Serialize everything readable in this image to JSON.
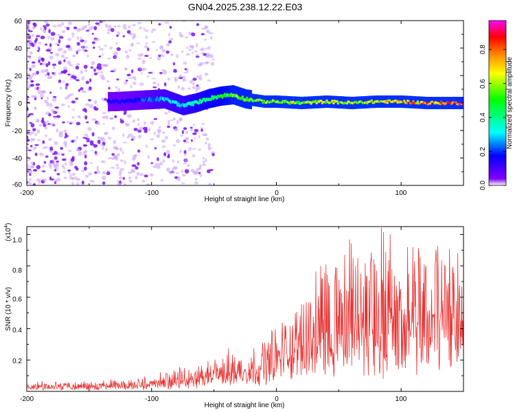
{
  "title": "GN04.2025.238.12.22.E03",
  "chart_data": [
    {
      "type": "heatmap",
      "xlabel": "Height of straight line (km)",
      "ylabel": "Frequency (Hz)",
      "xlim": [
        -200,
        150
      ],
      "ylim": [
        -60,
        60
      ],
      "xticks": [
        "-200",
        "-100",
        "0",
        "100"
      ],
      "yticks": [
        "60",
        "40",
        "20",
        "0",
        "-20",
        "-40",
        "-60"
      ],
      "colorbar": {
        "label": "Normalized spectral amplitude",
        "range": [
          0,
          0.97
        ],
        "ticks": [
          "0.0",
          "0.2",
          "0.4",
          "0.6",
          "0.8"
        ],
        "colors": [
          "#ffffff",
          "#8000ff",
          "#0000ff",
          "#00ffff",
          "#00ff00",
          "#ffff00",
          "#ff8000",
          "#ff0000",
          "#ff00ff"
        ]
      },
      "ridge": {
        "x": [
          -130,
          -110,
          -90,
          -75,
          -65,
          -55,
          -45,
          -35,
          -25,
          -10,
          0,
          20,
          40,
          60,
          80,
          100,
          120,
          150
        ],
        "frequency": [
          1,
          2,
          3,
          -2,
          0,
          3,
          5,
          6,
          3,
          1,
          1,
          0,
          1,
          0,
          1,
          1,
          0,
          0
        ],
        "amplitude": [
          0.15,
          0.2,
          0.3,
          0.35,
          0.4,
          0.45,
          0.5,
          0.55,
          0.55,
          0.6,
          0.65,
          0.6,
          0.65,
          0.65,
          0.7,
          0.75,
          0.8,
          0.9
        ]
      },
      "scatter_noise": {
        "x_range": [
          -200,
          -50
        ],
        "frequency_range": [
          -60,
          60
        ],
        "amplitude": 0.1
      }
    },
    {
      "type": "line",
      "xlabel": "Height of straight line (km)",
      "ylabel": "SNR (10 * v/v)",
      "y_multiplier": "(x10",
      "y_multiplier_exp": "4",
      "xlim": [
        -200,
        150
      ],
      "ylim": [
        0,
        1.05
      ],
      "xticks": [
        "-200",
        "-100",
        "0",
        "100"
      ],
      "yticks": [
        "0.2",
        "0.4",
        "0.6",
        "0.8",
        "1.0"
      ],
      "color": "#e83030",
      "envelope": {
        "x": [
          -200,
          -120,
          -100,
          -80,
          -60,
          -40,
          -20,
          -10,
          0,
          20,
          40,
          60,
          80,
          100,
          120,
          150
        ],
        "baseline": [
          0.03,
          0.03,
          0.04,
          0.06,
          0.08,
          0.1,
          0.12,
          0.14,
          0.2,
          0.26,
          0.3,
          0.32,
          0.32,
          0.35,
          0.4,
          0.55
        ],
        "peak": [
          0.06,
          0.08,
          0.1,
          0.14,
          0.2,
          0.27,
          0.3,
          0.35,
          0.45,
          0.62,
          0.82,
          0.95,
          1.05,
          0.95,
          0.9,
          0.85
        ]
      }
    }
  ]
}
